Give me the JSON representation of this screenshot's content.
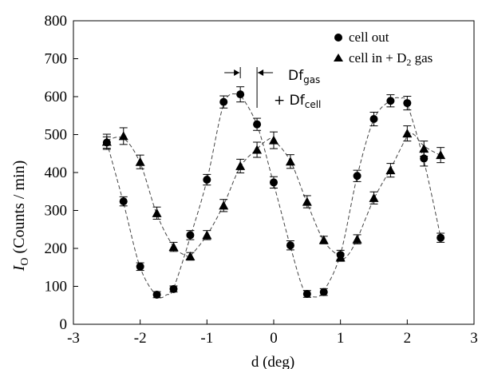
{
  "chart_data": {
    "type": "scatter",
    "xlabel": "d (deg)",
    "ylabel": "I",
    "ylabel_sub": "O",
    "ylabel_rest": " (Counts / min)",
    "xlim": [
      -3,
      3
    ],
    "ylim": [
      0,
      800
    ],
    "xticks": [
      -3,
      -2,
      -1,
      0,
      1,
      2,
      3
    ],
    "yticks": [
      0,
      100,
      200,
      300,
      400,
      500,
      600,
      700,
      800
    ],
    "grid": false,
    "legend_placement": "top-right",
    "series": [
      {
        "name": "cell out",
        "marker": "circle",
        "x": [
          -2.5,
          -2.25,
          -2.0,
          -1.75,
          -1.5,
          -1.25,
          -1.0,
          -0.75,
          -0.5,
          -0.25,
          0.0,
          0.25,
          0.5,
          0.75,
          1.0,
          1.25,
          1.5,
          1.75,
          2.0,
          2.25,
          2.5
        ],
        "y": [
          479,
          324,
          152,
          78,
          93,
          235,
          381,
          586,
          606,
          527,
          374,
          208,
          80,
          85,
          183,
          391,
          541,
          589,
          583,
          437,
          228
        ],
        "err": [
          15,
          12,
          10,
          8,
          8,
          12,
          14,
          16,
          20,
          16,
          15,
          12,
          9,
          9,
          12,
          15,
          18,
          16,
          18,
          20,
          12
        ]
      },
      {
        "name": "cell in + D2 gas",
        "name_parts": [
          "cell in + D",
          "2",
          " gas"
        ],
        "marker": "triangle",
        "x": [
          -2.5,
          -2.25,
          -2.0,
          -1.75,
          -1.5,
          -1.25,
          -1.0,
          -0.75,
          -0.5,
          -0.25,
          0.0,
          0.25,
          0.5,
          0.75,
          1.0,
          1.25,
          1.5,
          1.75,
          2.0,
          2.25,
          2.5
        ],
        "y": [
          481,
          496,
          428,
          293,
          204,
          179,
          235,
          313,
          417,
          460,
          485,
          429,
          323,
          222,
          176,
          224,
          333,
          406,
          503,
          463,
          446
        ],
        "err": [
          20,
          22,
          18,
          16,
          12,
          10,
          12,
          16,
          18,
          20,
          22,
          18,
          16,
          10,
          10,
          12,
          16,
          18,
          20,
          20,
          20
        ]
      }
    ],
    "fits": [
      {
        "series": "cell out",
        "style": "dashed",
        "x": [
          -2.5,
          -2.25,
          -2.0,
          -1.75,
          -1.6,
          -1.5,
          -1.25,
          -1.0,
          -0.75,
          -0.55,
          -0.5,
          -0.25,
          0.0,
          0.25,
          0.45,
          0.6,
          0.75,
          1.0,
          1.25,
          1.5,
          1.75,
          1.9,
          2.0,
          2.25,
          2.5
        ],
        "y": [
          480,
          320,
          150,
          75,
          78,
          95,
          230,
          380,
          580,
          608,
          605,
          525,
          370,
          205,
          90,
          72,
          88,
          185,
          390,
          540,
          590,
          596,
          580,
          430,
          230
        ]
      },
      {
        "series": "cell in + D2 gas",
        "style": "dashed",
        "x": [
          -2.5,
          -2.25,
          -2.0,
          -1.75,
          -1.5,
          -1.3,
          -1.25,
          -1.0,
          -0.75,
          -0.5,
          -0.25,
          -0.1,
          0.0,
          0.25,
          0.5,
          0.75,
          1.0,
          1.1,
          1.25,
          1.5,
          1.75,
          2.0,
          2.1,
          2.25,
          2.5
        ],
        "y": [
          485,
          490,
          425,
          290,
          205,
          180,
          180,
          235,
          315,
          415,
          462,
          485,
          485,
          430,
          320,
          220,
          178,
          180,
          225,
          330,
          410,
          495,
          500,
          470,
          445
        ]
      }
    ],
    "annotation": {
      "line1_main": "Df",
      "line1_sub": "gas",
      "line2_prefix": "+ Df",
      "line2_sub": "cell",
      "x_left": -0.5,
      "x_right": -0.25
    }
  }
}
